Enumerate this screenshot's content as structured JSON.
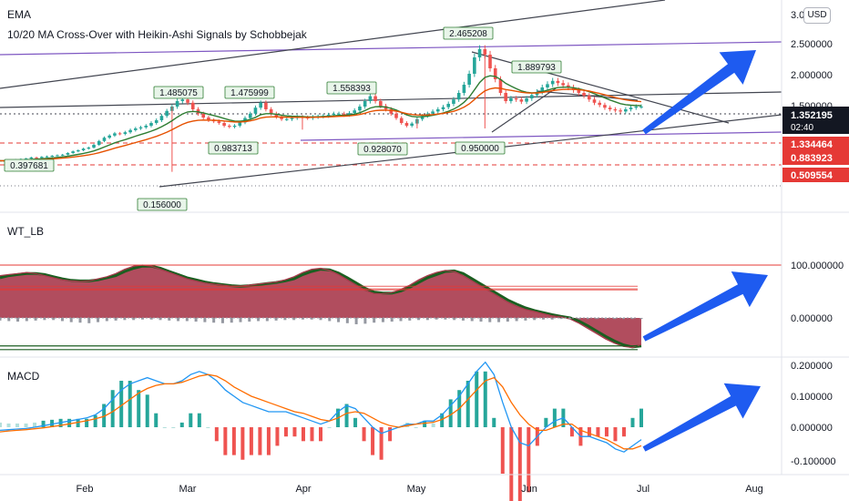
{
  "header": {
    "ema_title": "EMA",
    "strategy_title": "10/20 MA Cross-Over with Heikin-Ashi Signals by Schobbejak",
    "currency": "USD"
  },
  "panes": {
    "wt_title": "WT_LB",
    "macd_title": "MACD"
  },
  "colors": {
    "up": "#26a69a",
    "down": "#ef5350",
    "ema_fast": "#2e7d32",
    "ema_slow": "#e65100",
    "trend_dark": "#434651",
    "trend_purple": "#7e57c2",
    "wt_fill": "#a83a4c",
    "wt_signal": "#1b5e20",
    "macd_line": "#2196f3",
    "signal_line": "#ff6d00",
    "arrow": "#1e5bf0",
    "price_tag": "#131722",
    "red_level": "#e53935",
    "label_bg": "#e8f5e9",
    "label_border": "#2e7d32"
  },
  "chart_data": [
    {
      "type": "candlestick",
      "title": "EMA",
      "subtitle": "10/20 MA Cross-Over with Heikin-Ashi Signals by Schobbejak",
      "x_ticks": [
        "Feb",
        "Mar",
        "Apr",
        "May",
        "Jun",
        "Jul",
        "Aug"
      ],
      "y_ticks": [
        "3.0",
        "2.500000",
        "2.000000",
        "1.500000"
      ],
      "ylim": [
        0.2,
        3.0
      ],
      "close": [
        0.36,
        0.35,
        0.37,
        0.38,
        0.39,
        0.4,
        0.42,
        0.41,
        0.43,
        0.44,
        0.45,
        0.46,
        0.47,
        0.5,
        0.53,
        0.55,
        0.58,
        0.6,
        0.65,
        0.72,
        0.78,
        0.82,
        0.86,
        0.85,
        0.88,
        0.92,
        0.95,
        0.97,
        1.0,
        1.05,
        1.1,
        1.18,
        1.27,
        1.35,
        1.45,
        1.48,
        1.42,
        1.3,
        1.22,
        1.15,
        1.1,
        1.08,
        1.05,
        1.0,
        0.98,
        1.0,
        1.06,
        1.14,
        1.22,
        1.33,
        1.42,
        1.3,
        1.22,
        1.16,
        1.12,
        1.12,
        1.14,
        1.16,
        1.15,
        1.14,
        1.16,
        1.17,
        1.18,
        1.2,
        1.22,
        1.22,
        1.2,
        1.23,
        1.28,
        1.35,
        1.45,
        1.54,
        1.45,
        1.36,
        1.3,
        1.22,
        1.14,
        1.05,
        1.0,
        1.04,
        1.12,
        1.18,
        1.22,
        1.26,
        1.3,
        1.34,
        1.4,
        1.48,
        1.6,
        1.75,
        1.95,
        2.25,
        2.4,
        2.3,
        2.05,
        1.85,
        1.6,
        1.45,
        1.5,
        1.48,
        1.44,
        1.5,
        1.56,
        1.62,
        1.7,
        1.76,
        1.82,
        1.78,
        1.74,
        1.7,
        1.65,
        1.6,
        1.55,
        1.48,
        1.42,
        1.38,
        1.33,
        1.3,
        1.28,
        1.26,
        1.3,
        1.33,
        1.35,
        1.35
      ],
      "overlays": {
        "ema_fast": "green line",
        "ema_slow": "orange line"
      },
      "price_labels": [
        "0.397681",
        "0.156000",
        "1.485075",
        "0.983713",
        "1.475999",
        "1.558393",
        "0.928070",
        "2.465208",
        "0.950000",
        "1.889793"
      ],
      "right_axis_tags": {
        "current_price": "1.352195",
        "countdown": "02:40",
        "levels": [
          "1.334464",
          "0.883923",
          "0.509554"
        ]
      }
    },
    {
      "type": "area",
      "title": "WT_LB",
      "y_ticks": [
        "100.000000",
        "0.000000"
      ],
      "ylim": [
        -60,
        110
      ],
      "wt1": [
        80,
        82,
        84,
        86,
        84,
        80,
        76,
        72,
        70,
        69,
        70,
        74,
        78,
        84,
        92,
        98,
        100,
        98,
        92,
        86,
        80,
        74,
        70,
        66,
        64,
        62,
        60,
        60,
        62,
        64,
        66,
        68,
        72,
        78,
        86,
        92,
        94,
        90,
        82,
        72,
        62,
        52,
        46,
        46,
        48,
        54,
        62,
        72,
        80,
        86,
        90,
        88,
        80,
        70,
        60,
        50,
        40,
        30,
        22,
        16,
        12,
        8,
        4,
        2,
        -2,
        -10,
        -20,
        -30,
        -40,
        -48,
        -54,
        -56,
        -50
      ],
      "wt2": [
        76,
        80,
        82,
        84,
        84,
        82,
        78,
        74,
        71,
        70,
        70,
        72,
        76,
        80,
        88,
        94,
        98,
        98,
        94,
        88,
        82,
        76,
        72,
        68,
        65,
        63,
        61,
        60,
        61,
        63,
        65,
        67,
        70,
        74,
        82,
        88,
        92,
        91,
        85,
        76,
        66,
        56,
        49,
        47,
        47,
        51,
        58,
        67,
        76,
        82,
        88,
        89,
        84,
        74,
        64,
        54,
        44,
        34,
        26,
        19,
        14,
        10,
        6,
        3,
        0,
        -6,
        -15,
        -25,
        -35,
        -44,
        -51,
        -55,
        -53
      ],
      "histogram": [
        -5,
        -6,
        -7,
        -6,
        -5,
        -4,
        -4,
        -6,
        -8,
        -9,
        -10,
        -8,
        -6,
        -5,
        -4,
        -4,
        -3,
        -3,
        -4,
        -5,
        -6,
        -6,
        -7,
        -8,
        -9,
        -10,
        -9,
        -8,
        -7,
        -6,
        -6,
        -5,
        -4,
        -4,
        -3,
        -3,
        -4,
        -6,
        -8,
        -10,
        -12,
        -11,
        -9,
        -8,
        -7,
        -6,
        -5,
        -4,
        -4,
        -3,
        -3,
        -4,
        -5,
        -6,
        -7,
        -8,
        -8,
        -7,
        -6,
        -5,
        -4,
        -3,
        -3,
        -2,
        -2,
        -2,
        -2,
        -2,
        -2,
        -2,
        -2,
        -2,
        -2
      ],
      "levels": {
        "red": [
          100,
          60,
          55,
          53
        ],
        "green": [
          -60,
          -53
        ]
      }
    },
    {
      "type": "line",
      "title": "MACD",
      "y_ticks": [
        "0.200000",
        "0.100000",
        "0.000000",
        "-0.100000"
      ],
      "ylim": [
        -0.13,
        0.22
      ],
      "macd": [
        -0.01,
        -0.008,
        -0.006,
        -0.004,
        0.0,
        0.005,
        0.01,
        0.015,
        0.02,
        0.025,
        0.03,
        0.04,
        0.06,
        0.09,
        0.12,
        0.14,
        0.15,
        0.16,
        0.15,
        0.14,
        0.14,
        0.15,
        0.17,
        0.18,
        0.17,
        0.15,
        0.12,
        0.1,
        0.08,
        0.07,
        0.06,
        0.05,
        0.05,
        0.05,
        0.04,
        0.03,
        0.02,
        0.01,
        0.02,
        0.05,
        0.07,
        0.06,
        0.03,
        0.0,
        -0.02,
        -0.01,
        0.0,
        0.01,
        0.01,
        0.02,
        0.02,
        0.04,
        0.07,
        0.1,
        0.14,
        0.18,
        0.21,
        0.17,
        0.08,
        0.0,
        -0.05,
        -0.06,
        -0.03,
        0.0,
        0.02,
        0.03,
        0.0,
        -0.03,
        -0.03,
        -0.04,
        -0.05,
        -0.07,
        -0.08,
        -0.06,
        -0.04
      ],
      "signal": [
        -0.015,
        -0.012,
        -0.01,
        -0.008,
        -0.005,
        -0.002,
        0.002,
        0.006,
        0.011,
        0.016,
        0.021,
        0.027,
        0.035,
        0.05,
        0.07,
        0.09,
        0.11,
        0.125,
        0.135,
        0.14,
        0.14,
        0.145,
        0.155,
        0.165,
        0.17,
        0.165,
        0.15,
        0.13,
        0.115,
        0.1,
        0.09,
        0.08,
        0.07,
        0.06,
        0.05,
        0.045,
        0.035,
        0.025,
        0.02,
        0.03,
        0.045,
        0.05,
        0.045,
        0.03,
        0.015,
        0.005,
        0.0,
        0.005,
        0.01,
        0.013,
        0.016,
        0.025,
        0.04,
        0.06,
        0.09,
        0.12,
        0.15,
        0.16,
        0.13,
        0.08,
        0.04,
        0.01,
        -0.01,
        -0.01,
        0.0,
        0.01,
        0.01,
        -0.01,
        -0.02,
        -0.03,
        -0.04,
        -0.055,
        -0.07,
        -0.07,
        -0.06
      ]
    }
  ]
}
